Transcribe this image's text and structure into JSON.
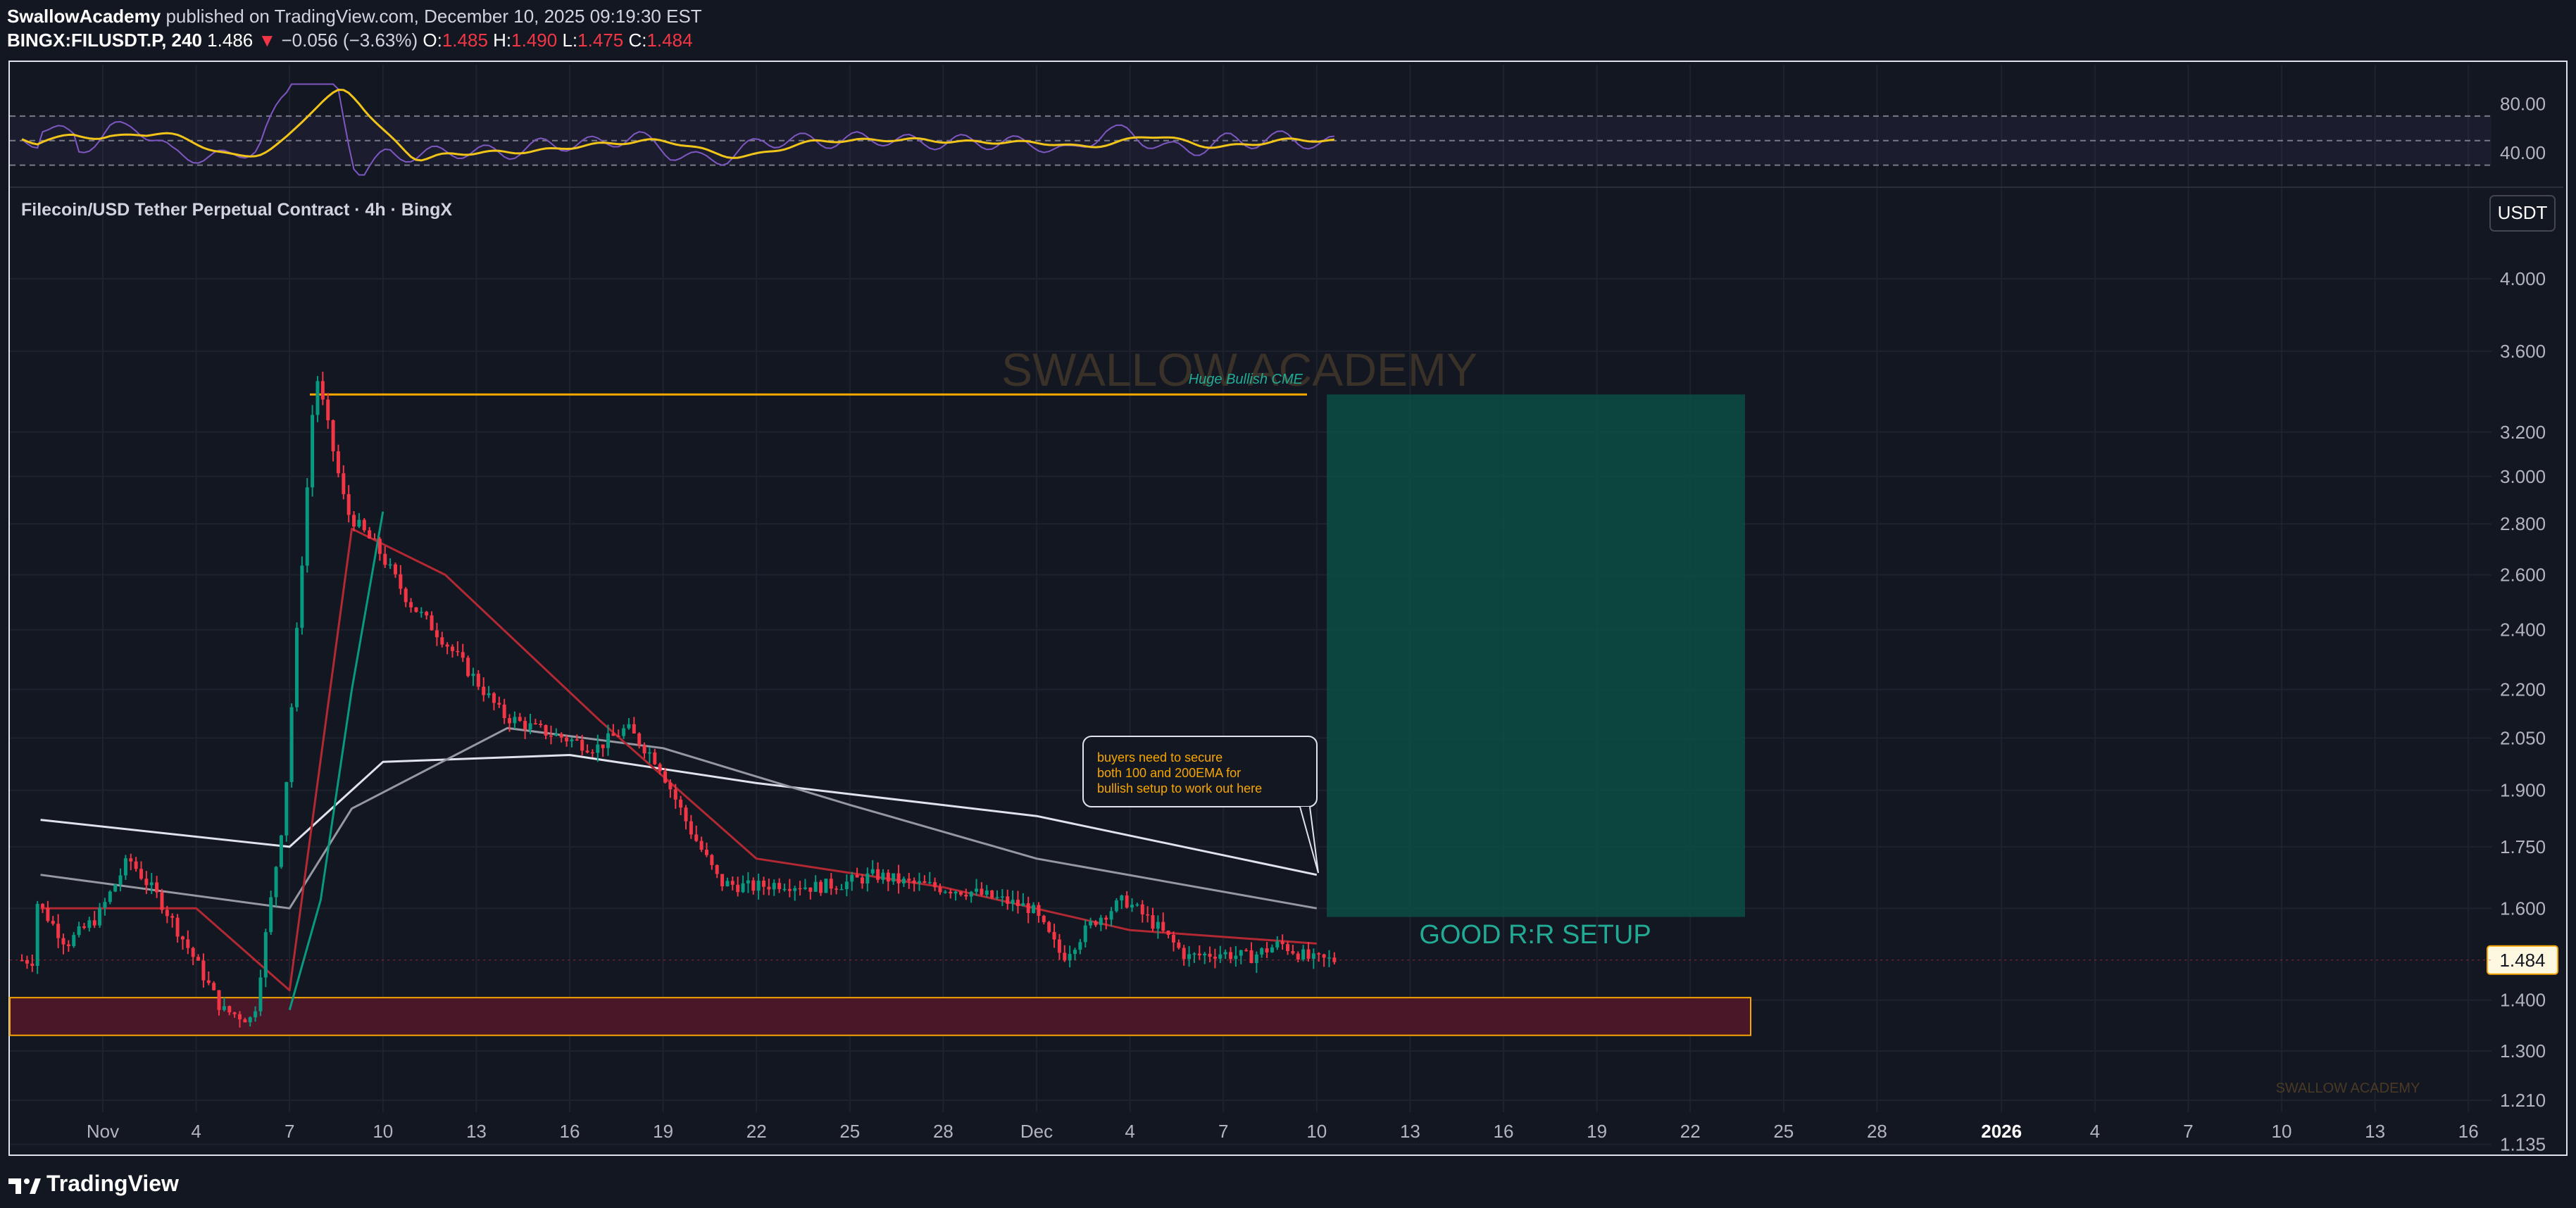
{
  "header": {
    "author": "SwallowAcademy",
    "published_text": "published on TradingView.com, December 10, 2025 09:19:30 EST",
    "symbol": "BINGX:FILUSDT.P, 240",
    "last": "1.486",
    "change": "−0.056 (−3.63%)",
    "o_label": "O:",
    "o_value": "1.485",
    "h_label": "H:",
    "h_value": "1.490",
    "l_label": "L:",
    "l_value": "1.475",
    "c_label": "C:",
    "c_value": "1.484"
  },
  "footer": {
    "brand": "TradingView"
  },
  "chart_data": {
    "type": "candlestick",
    "title": "Filecoin/USD Tether Perpetual Contract · 4h · BingX",
    "currency_button": "USDT",
    "price_scale": "log",
    "ylim": [
      1.135,
      4.2
    ],
    "last_price_label": "1.484",
    "y_ticks": [
      "4.000",
      "3.600",
      "3.200",
      "3.000",
      "2.800",
      "2.600",
      "2.400",
      "2.200",
      "2.050",
      "1.900",
      "1.750",
      "1.600",
      "1.400",
      "1.300",
      "1.210",
      "1.135"
    ],
    "x_ticks": [
      "Nov",
      "4",
      "7",
      "10",
      "13",
      "16",
      "19",
      "22",
      "25",
      "28",
      "Dec",
      "4",
      "7",
      "10",
      "13",
      "16",
      "19",
      "22",
      "25",
      "28",
      "2026",
      "4",
      "7",
      "10",
      "13",
      "16"
    ],
    "rsi_panel": {
      "ticks": [
        "80.00",
        "40.00"
      ],
      "upper_band": 70,
      "lower_band": 30,
      "mid_line": 50
    },
    "price_path": [
      [
        "Oct 30",
        1.62
      ],
      [
        "Oct 31",
        1.52
      ],
      [
        "Nov 1",
        1.58
      ],
      [
        "Nov 2",
        1.72
      ],
      [
        "Nov 3",
        1.62
      ],
      [
        "Nov 4",
        1.5
      ],
      [
        "Nov 5",
        1.38
      ],
      [
        "Nov 6",
        1.36
      ],
      [
        "Nov 7",
        1.85
      ],
      [
        "Nov 8",
        3.5
      ],
      [
        "Nov 9",
        2.85
      ],
      [
        "Nov 10",
        2.7
      ],
      [
        "Nov 11",
        2.5
      ],
      [
        "Nov 12",
        2.38
      ],
      [
        "Nov 13",
        2.25
      ],
      [
        "Nov 14",
        2.12
      ],
      [
        "Nov 15",
        2.08
      ],
      [
        "Nov 16",
        2.05
      ],
      [
        "Nov 17",
        2.02
      ],
      [
        "Nov 18",
        2.08
      ],
      [
        "Nov 19",
        1.98
      ],
      [
        "Nov 20",
        1.8
      ],
      [
        "Nov 21",
        1.66
      ],
      [
        "Nov 22",
        1.65
      ],
      [
        "Nov 23",
        1.66
      ],
      [
        "Nov 24",
        1.65
      ],
      [
        "Nov 25",
        1.66
      ],
      [
        "Nov 26",
        1.68
      ],
      [
        "Nov 27",
        1.66
      ],
      [
        "Nov 28",
        1.65
      ],
      [
        "Nov 29",
        1.64
      ],
      [
        "Nov 30",
        1.62
      ],
      [
        "Dec 1",
        1.6
      ],
      [
        "Dec 2",
        1.49
      ],
      [
        "Dec 3",
        1.57
      ],
      [
        "Dec 4",
        1.62
      ],
      [
        "Dec 5",
        1.56
      ],
      [
        "Dec 6",
        1.49
      ],
      [
        "Dec 7",
        1.5
      ],
      [
        "Dec 8",
        1.49
      ],
      [
        "Dec 9",
        1.52
      ],
      [
        "Dec 10",
        1.484
      ]
    ],
    "series": [
      {
        "name": "",
        "color": "#e0e3eb",
        "values": [
          [
            "Oct 30",
            1.82
          ],
          [
            "Nov 7",
            1.75
          ],
          [
            "Nov 10",
            1.98
          ],
          [
            "Nov 16",
            2.0
          ],
          [
            "Nov 22",
            1.92
          ],
          [
            "Dec 1",
            1.83
          ],
          [
            "Dec 10",
            1.68
          ]
        ]
      },
      {
        "name": "",
        "color": "#9598a1",
        "values": [
          [
            "Oct 30",
            1.68
          ],
          [
            "Nov 7",
            1.6
          ],
          [
            "Nov 9",
            1.85
          ],
          [
            "Nov 14",
            2.08
          ],
          [
            "Nov 19",
            2.02
          ],
          [
            "Nov 25",
            1.86
          ],
          [
            "Dec 1",
            1.72
          ],
          [
            "Dec 10",
            1.6
          ]
        ]
      },
      {
        "name": "",
        "color": "#b22833",
        "values": [
          [
            "Oct 30",
            1.6
          ],
          [
            "Nov 4",
            1.6
          ],
          [
            "Nov 7",
            1.42
          ],
          [
            "Nov 9",
            2.78
          ],
          [
            "Nov 12",
            2.6
          ],
          [
            "Nov 17",
            2.1
          ],
          [
            "Nov 22",
            1.72
          ],
          [
            "Nov 28",
            1.65
          ],
          [
            "Dec 4",
            1.55
          ],
          [
            "Dec 10",
            1.52
          ]
        ]
      },
      {
        "name": "",
        "color": "#089981",
        "values": [
          [
            "Nov 7",
            1.38
          ],
          [
            "Nov 8",
            1.62
          ],
          [
            "Nov 9",
            2.2
          ],
          [
            "Nov 10",
            2.85
          ]
        ]
      }
    ],
    "annotations": {
      "resistance_label": "Huge Bullish CME",
      "resistance_price": 3.38,
      "note": "buyers need to secure both 100 and 200EMA for bullish setup to work out here",
      "position_label": "GOOD R:R SETUP",
      "position_top": 3.38,
      "position_entry": 1.58,
      "support_zone": [
        1.33,
        1.405
      ],
      "watermark": "SWALLOW ACADEMY",
      "watermark_small": "SWALLOW ACADEMY"
    },
    "colors": {
      "background": "#131722",
      "grid": "#1e222d",
      "up": "#089981",
      "down": "#f23645",
      "annotation": "#f7a600",
      "target_zone": "#0c4d45",
      "support_zone": "#4a1729",
      "rsi": "#7e57c2",
      "rsi_ma": "#f0c419",
      "watermark": "#4a3a25"
    }
  }
}
